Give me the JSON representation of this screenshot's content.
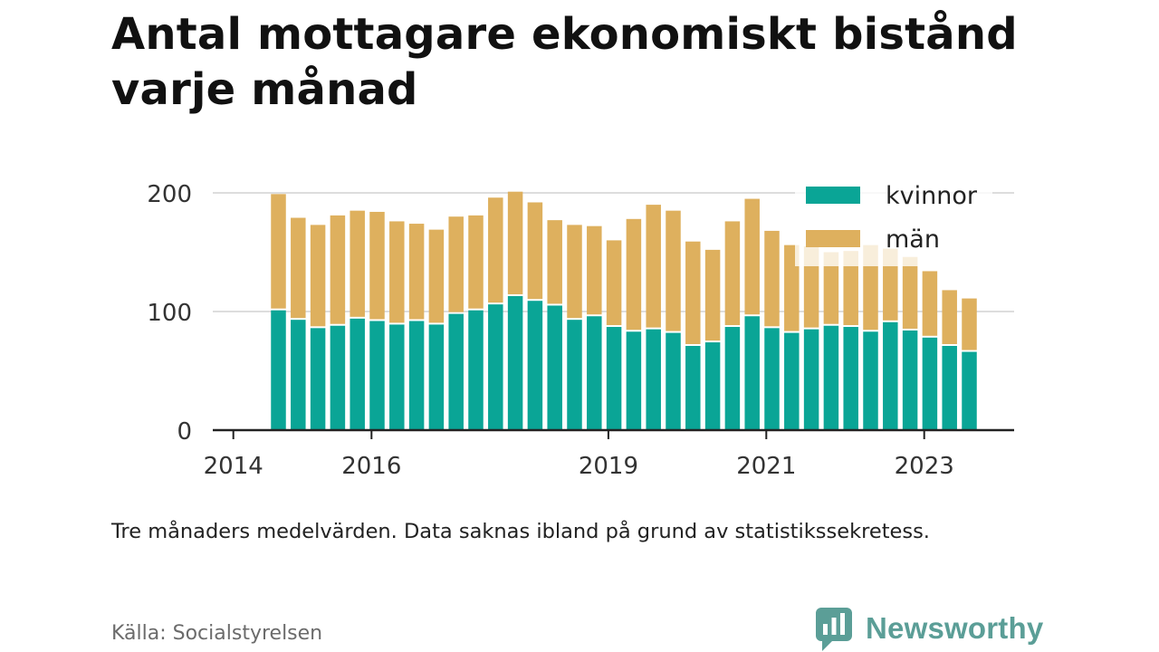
{
  "header": {
    "title": "Antal mottagare ekonomiskt bistånd varje månad"
  },
  "colors": {
    "women": "#0aa596",
    "men": "#deb05e",
    "axis": "#222222",
    "grid": "#dddddd",
    "brand": "#5b9e97"
  },
  "chart_data": {
    "type": "bar",
    "stacked": true,
    "ylim": [
      0,
      200
    ],
    "y_ticks": [
      "0",
      "100",
      "200"
    ],
    "x_ticks": [
      {
        "label": "2014",
        "index": -1
      },
      {
        "label": "2016",
        "index": 6
      },
      {
        "label": "2019",
        "index": 18
      },
      {
        "label": "2021",
        "index": 26
      },
      {
        "label": "2023",
        "index": 34
      }
    ],
    "legend": {
      "position": "top-right",
      "items": [
        "kvinnor",
        "män"
      ]
    },
    "series": [
      {
        "name": "kvinnor",
        "values": [
          101,
          93,
          86,
          88,
          94,
          92,
          89,
          92,
          89,
          98,
          101,
          106,
          113,
          109,
          105,
          93,
          96,
          87,
          83,
          85,
          82,
          71,
          74,
          87,
          96,
          86,
          82,
          85,
          88,
          87,
          83,
          91,
          84,
          78,
          71,
          66
        ]
      },
      {
        "name": "män",
        "values": [
          98,
          86,
          87,
          93,
          91,
          92,
          87,
          82,
          80,
          82,
          80,
          90,
          88,
          83,
          72,
          80,
          76,
          73,
          95,
          105,
          103,
          88,
          78,
          89,
          99,
          82,
          74,
          70,
          62,
          64,
          73,
          62,
          62,
          56,
          47,
          45
        ]
      }
    ]
  },
  "footer": {
    "note": "Tre månaders medelvärden. Data saknas ibland på grund av statistikssekretess.",
    "source": "Källa: Socialstyrelsen",
    "brand": "Newsworthy"
  }
}
